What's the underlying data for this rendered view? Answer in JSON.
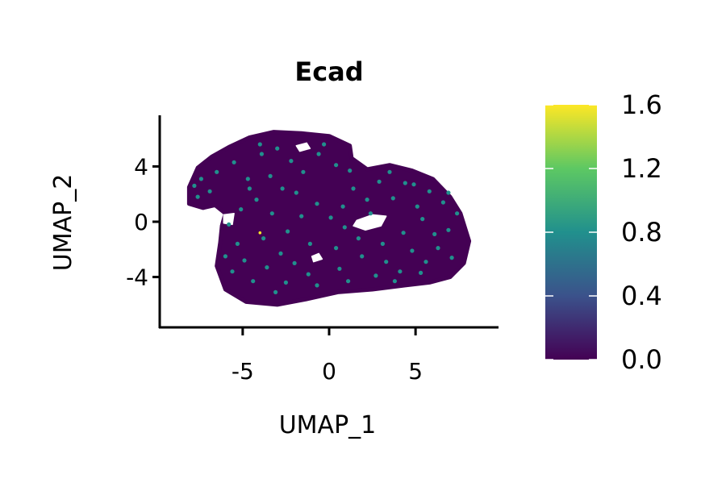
{
  "chart_data": {
    "type": "scatter",
    "title": "Ecad",
    "xlabel": "UMAP_1",
    "ylabel": "UMAP_2",
    "xlim": [
      -9.8,
      9.8
    ],
    "ylim": [
      -7.7,
      7.7
    ],
    "x_ticks": [
      {
        "value": -5,
        "label": "-5"
      },
      {
        "value": 0,
        "label": "0"
      },
      {
        "value": 5,
        "label": "5"
      }
    ],
    "y_ticks": [
      {
        "value": -4,
        "label": "-4"
      },
      {
        "value": 0,
        "label": "0"
      },
      {
        "value": 4,
        "label": "4"
      }
    ],
    "grid": false,
    "colorbar": {
      "colormap": "viridis",
      "min": 0.0,
      "max": 1.6,
      "ticks": [
        {
          "value": 1.6,
          "label": "1.6"
        },
        {
          "value": 1.2,
          "label": "1.2"
        },
        {
          "value": 0.8,
          "label": "0.8"
        },
        {
          "value": 0.4,
          "label": "0.4"
        },
        {
          "value": 0.0,
          "label": "0.0"
        }
      ],
      "stops": [
        "#440154",
        "#3b528b",
        "#21908d",
        "#5dc863",
        "#fde725"
      ]
    },
    "background_value": 0.0,
    "background_color": "#440154",
    "cluster_outline": [
      [
        -8.1,
        2.5
      ],
      [
        -7.6,
        3.9
      ],
      [
        -6.8,
        4.7
      ],
      [
        -5.8,
        5.4
      ],
      [
        -4.6,
        6.1
      ],
      [
        -3.2,
        6.5
      ],
      [
        -1.6,
        6.4
      ],
      [
        0.0,
        6.2
      ],
      [
        1.2,
        5.5
      ],
      [
        1.3,
        4.6
      ],
      [
        2.2,
        3.8
      ],
      [
        3.5,
        4.1
      ],
      [
        4.8,
        3.7
      ],
      [
        6.0,
        3.1
      ],
      [
        7.0,
        1.8
      ],
      [
        7.6,
        0.6
      ],
      [
        8.1,
        -1.4
      ],
      [
        7.8,
        -3.0
      ],
      [
        7.0,
        -4.0
      ],
      [
        5.8,
        -4.4
      ],
      [
        4.4,
        -4.6
      ],
      [
        2.5,
        -4.9
      ],
      [
        0.5,
        -5.1
      ],
      [
        -1.3,
        -5.6
      ],
      [
        -3.0,
        -6.0
      ],
      [
        -4.8,
        -5.8
      ],
      [
        -6.0,
        -4.9
      ],
      [
        -6.5,
        -3.2
      ],
      [
        -6.3,
        -1.5
      ],
      [
        -6.2,
        -0.3
      ],
      [
        -6.0,
        0.6
      ],
      [
        -6.6,
        1.2
      ],
      [
        -7.3,
        1.0
      ],
      [
        -8.1,
        1.3
      ]
    ],
    "gaps": [
      [
        [
          1.6,
          0.1
        ],
        [
          2.5,
          0.5
        ],
        [
          3.3,
          0.4
        ],
        [
          3.0,
          -0.3
        ],
        [
          2.1,
          -0.6
        ],
        [
          1.4,
          -0.3
        ]
      ],
      [
        [
          -1.9,
          5.5
        ],
        [
          -1.3,
          5.7
        ],
        [
          -1.1,
          5.3
        ],
        [
          -1.7,
          5.1
        ]
      ],
      [
        [
          -1.0,
          -2.5
        ],
        [
          -0.6,
          -2.3
        ],
        [
          -0.4,
          -2.7
        ],
        [
          -0.9,
          -2.9
        ]
      ],
      [
        [
          -6.1,
          0.5
        ],
        [
          -5.5,
          0.6
        ],
        [
          -5.6,
          -0.2
        ],
        [
          -6.1,
          -0.1
        ]
      ]
    ],
    "expressing_cells": {
      "value": 0.8,
      "color": "#21908d",
      "points": [
        [
          -7.8,
          2.6
        ],
        [
          -7.4,
          3.1
        ],
        [
          -6.9,
          2.2
        ],
        [
          -7.6,
          1.8
        ],
        [
          -6.5,
          3.6
        ],
        [
          -5.5,
          4.3
        ],
        [
          -4.7,
          3.1
        ],
        [
          -3.9,
          4.9
        ],
        [
          -3.0,
          5.3
        ],
        [
          -2.2,
          4.4
        ],
        [
          -1.5,
          3.6
        ],
        [
          -0.6,
          4.9
        ],
        [
          0.4,
          4.1
        ],
        [
          -3.4,
          3.3
        ],
        [
          -2.7,
          2.4
        ],
        [
          -4.2,
          1.6
        ],
        [
          -5.1,
          0.9
        ],
        [
          -5.8,
          -0.2
        ],
        [
          -5.3,
          -1.6
        ],
        [
          -4.9,
          -2.8
        ],
        [
          -5.6,
          -3.6
        ],
        [
          -4.4,
          -4.3
        ],
        [
          -3.6,
          -3.3
        ],
        [
          -3.1,
          -5.1
        ],
        [
          -2.5,
          -4.4
        ],
        [
          -2.0,
          -3.0
        ],
        [
          -1.2,
          -3.8
        ],
        [
          -0.7,
          -4.6
        ],
        [
          0.6,
          -3.4
        ],
        [
          1.1,
          -4.3
        ],
        [
          1.9,
          -2.5
        ],
        [
          2.7,
          -3.9
        ],
        [
          3.3,
          -2.9
        ],
        [
          4.1,
          -3.6
        ],
        [
          4.8,
          -2.1
        ],
        [
          5.6,
          -2.9
        ],
        [
          6.3,
          -1.9
        ],
        [
          6.9,
          -0.6
        ],
        [
          7.4,
          0.6
        ],
        [
          6.6,
          1.4
        ],
        [
          5.8,
          2.2
        ],
        [
          5.1,
          1.1
        ],
        [
          4.4,
          2.8
        ],
        [
          3.7,
          1.7
        ],
        [
          2.9,
          2.9
        ],
        [
          2.2,
          1.6
        ],
        [
          1.4,
          2.4
        ],
        [
          0.8,
          1.1
        ],
        [
          0.1,
          0.3
        ],
        [
          -0.7,
          1.3
        ],
        [
          -1.6,
          0.4
        ],
        [
          -2.4,
          -0.7
        ],
        [
          -3.3,
          0.6
        ],
        [
          -1.1,
          -1.6
        ],
        [
          0.4,
          -1.9
        ],
        [
          1.7,
          -1.2
        ],
        [
          3.1,
          -1.6
        ],
        [
          4.3,
          -0.8
        ],
        [
          5.4,
          0.2
        ],
        [
          6.1,
          -0.9
        ],
        [
          7.1,
          -2.6
        ],
        [
          3.8,
          -4.3
        ],
        [
          -1.9,
          2.1
        ],
        [
          -3.8,
          -1.2
        ],
        [
          1.2,
          3.7
        ],
        [
          2.4,
          0.6
        ],
        [
          -4.6,
          2.4
        ],
        [
          6.9,
          2.1
        ],
        [
          -2.8,
          -2.3
        ],
        [
          0.9,
          -0.4
        ],
        [
          5.3,
          -3.7
        ],
        [
          -6.0,
          -2.5
        ],
        [
          -0.3,
          5.6
        ],
        [
          3.5,
          3.6
        ],
        [
          -4.0,
          5.6
        ],
        [
          4.9,
          2.7
        ]
      ]
    },
    "high_cells": {
      "value": 1.6,
      "color": "#fde725",
      "points": [
        [
          -4.0,
          -0.8
        ]
      ]
    }
  }
}
